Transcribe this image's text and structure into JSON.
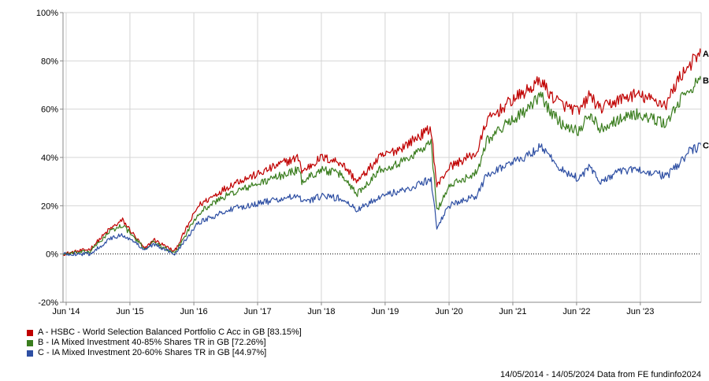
{
  "chart_data": {
    "type": "line",
    "y_ticks": [
      "100%",
      "80%",
      "60%",
      "40%",
      "20%",
      "0%",
      "-20%"
    ],
    "ylim": [
      -20,
      100
    ],
    "x_ticks": [
      "Jun '14",
      "Jun '15",
      "Jun '16",
      "Jun '17",
      "Jun '18",
      "Jun '19",
      "Jun '20",
      "Jun '21",
      "Jun '22",
      "Jun '23"
    ],
    "x_tick_dates": [
      "2014-06-01",
      "2015-06-01",
      "2016-06-01",
      "2017-06-01",
      "2018-06-01",
      "2019-06-01",
      "2020-06-01",
      "2021-06-01",
      "2022-06-01",
      "2023-06-01"
    ],
    "x_range": [
      "2014-05-14",
      "2024-05-14"
    ],
    "grid": true,
    "legend_position": "bottom-left",
    "series": [
      {
        "label": "A",
        "legend": "A - HSBC - World Selection Balanced Portfolio C Acc in GB [83.15%]",
        "color": "#c00000",
        "x": [
          "2014-05-14",
          "2014-10-15",
          "2015-02-01",
          "2015-04-20",
          "2015-08-25",
          "2015-10-15",
          "2016-02-11",
          "2016-06-27",
          "2016-11-01",
          "2017-02-01",
          "2017-06-01",
          "2017-11-01",
          "2018-01-25",
          "2018-02-09",
          "2018-06-01",
          "2018-09-20",
          "2018-12-24",
          "2019-05-01",
          "2019-09-01",
          "2020-02-19",
          "2020-03-23",
          "2020-06-01",
          "2020-11-09",
          "2021-01-01",
          "2021-06-01",
          "2021-09-01",
          "2021-11-08",
          "2022-01-01",
          "2022-03-08",
          "2022-06-16",
          "2022-08-16",
          "2022-10-12",
          "2023-02-01",
          "2023-05-01",
          "2023-08-01",
          "2023-10-27",
          "2024-01-01",
          "2024-03-01",
          "2024-05-14"
        ],
        "y": [
          0,
          2,
          10,
          14,
          2,
          6,
          1,
          20,
          26,
          30,
          33,
          38,
          40,
          34,
          40,
          38,
          30,
          40,
          44,
          52,
          28,
          36,
          42,
          55,
          64,
          68,
          72,
          66,
          62,
          59,
          66,
          60,
          64,
          66,
          64,
          62,
          72,
          78,
          83
        ]
      },
      {
        "label": "B",
        "legend": "B - IA Mixed Investment 40-85% Shares TR in GB [72.26%]",
        "color": "#3a7d1e",
        "x": [
          "2014-05-14",
          "2014-10-15",
          "2015-02-01",
          "2015-04-20",
          "2015-08-25",
          "2015-10-15",
          "2016-02-11",
          "2016-06-27",
          "2016-11-01",
          "2017-02-01",
          "2017-06-01",
          "2017-11-01",
          "2018-01-25",
          "2018-02-09",
          "2018-06-01",
          "2018-09-20",
          "2018-12-24",
          "2019-05-01",
          "2019-09-01",
          "2020-02-19",
          "2020-03-23",
          "2020-06-01",
          "2020-11-09",
          "2021-01-01",
          "2021-06-01",
          "2021-09-01",
          "2021-11-08",
          "2022-01-01",
          "2022-03-08",
          "2022-06-16",
          "2022-08-16",
          "2022-10-12",
          "2023-02-01",
          "2023-05-01",
          "2023-08-01",
          "2023-10-27",
          "2024-01-01",
          "2024-03-01",
          "2024-05-14"
        ],
        "y": [
          0,
          1,
          9,
          12,
          2,
          5,
          0,
          17,
          23,
          26,
          29,
          33,
          35,
          30,
          35,
          33,
          25,
          35,
          38,
          46,
          18,
          28,
          34,
          47,
          56,
          60,
          66,
          59,
          54,
          51,
          58,
          52,
          56,
          58,
          56,
          54,
          62,
          68,
          72
        ]
      },
      {
        "label": "C",
        "legend": "C - IA Mixed Investment 20-60% Shares TR in GB [44.97%]",
        "color": "#2e4fa3",
        "x": [
          "2014-05-14",
          "2014-10-15",
          "2015-02-01",
          "2015-04-20",
          "2015-08-25",
          "2015-10-15",
          "2016-02-11",
          "2016-06-27",
          "2016-11-01",
          "2017-02-01",
          "2017-06-01",
          "2017-11-01",
          "2018-01-25",
          "2018-02-09",
          "2018-06-01",
          "2018-09-20",
          "2018-12-24",
          "2019-05-01",
          "2019-09-01",
          "2020-02-19",
          "2020-03-23",
          "2020-06-01",
          "2020-11-09",
          "2021-01-01",
          "2021-06-01",
          "2021-09-01",
          "2021-11-08",
          "2022-01-01",
          "2022-03-08",
          "2022-06-16",
          "2022-08-16",
          "2022-10-12",
          "2023-02-01",
          "2023-05-01",
          "2023-08-01",
          "2023-10-27",
          "2024-01-01",
          "2024-03-01",
          "2024-05-14"
        ],
        "y": [
          0,
          0,
          6,
          8,
          2,
          4,
          0,
          13,
          17,
          19,
          21,
          23,
          24,
          21,
          24,
          23,
          18,
          24,
          26,
          31,
          11,
          20,
          24,
          33,
          38,
          41,
          45,
          40,
          35,
          31,
          36,
          30,
          34,
          35,
          34,
          32,
          37,
          42,
          45
        ]
      }
    ]
  },
  "footer": "14/05/2014 - 14/05/2024 Data from FE fundinfo2024"
}
